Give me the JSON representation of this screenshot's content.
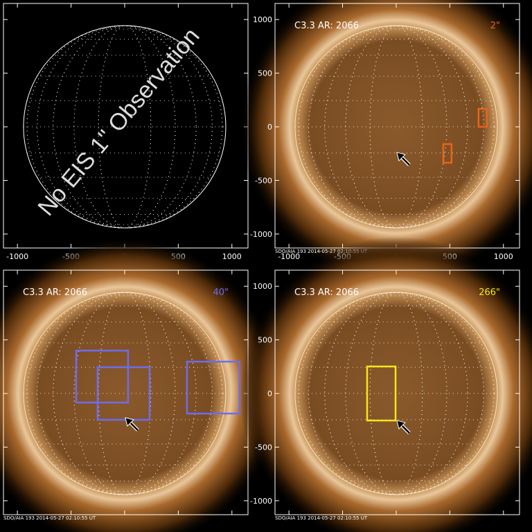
{
  "panels": [
    {
      "xlim": [
        -1130,
        1150
      ],
      "ylim": [
        -1130,
        1150
      ],
      "xticks": [
        -1000,
        -500,
        0,
        500,
        1000
      ],
      "yticks": [
        -1000,
        -500,
        0,
        500,
        1000
      ],
      "show_xtick_labels": true,
      "show_ytick_labels": false,
      "sun": false,
      "overlay": "No EIS 1\" Observation"
    },
    {
      "xlim": [
        -1130,
        1150
      ],
      "ylim": [
        -1130,
        1150
      ],
      "xticks": [
        -1000,
        -500,
        0,
        500,
        1000
      ],
      "yticks": [
        -1000,
        -500,
        0,
        500,
        1000
      ],
      "show_xtick_labels": true,
      "show_ytick_labels": true,
      "sun": true,
      "label": "C3.3 AR: 2066",
      "scale_label": "2\"",
      "color": "#e8641c",
      "footer": "SDO/AIA 193   2014-05-27 02:10:55 UT",
      "boxes": [
        {
          "x": [
            439,
            516
          ],
          "y": [
            -335,
            -161
          ]
        },
        {
          "x": [
            768,
            845
          ],
          "y": [
            0,
            168
          ]
        }
      ],
      "arrow": [
        6,
        -239
      ]
    },
    {
      "xlim": [
        -1130,
        1150
      ],
      "ylim": [
        -1130,
        1150
      ],
      "xticks": [
        -1000,
        -500,
        0,
        500,
        1000
      ],
      "yticks": [
        -1000,
        -500,
        0,
        500,
        1000
      ],
      "show_xtick_labels": false,
      "show_ytick_labels": false,
      "sun": true,
      "label": "C3.3 AR: 2066",
      "scale_label": "40\"",
      "color": "#6f6cf0",
      "footer": "SDO/AIA 193   2014-05-27 02:10:55 UT",
      "boxes": [
        {
          "x": [
            -452,
            32
          ],
          "y": [
            -84,
            400
          ]
        },
        {
          "x": [
            -252,
            232
          ],
          "y": [
            -245,
            245
          ]
        },
        {
          "x": [
            581,
            1071
          ],
          "y": [
            -187,
            297
          ]
        }
      ],
      "arrow": [
        6,
        -226
      ]
    },
    {
      "xlim": [
        -1130,
        1150
      ],
      "ylim": [
        -1130,
        1150
      ],
      "xticks": [
        -1000,
        -500,
        0,
        500,
        1000
      ],
      "yticks": [
        -1000,
        -500,
        0,
        500,
        1000
      ],
      "show_xtick_labels": false,
      "show_ytick_labels": true,
      "sun": true,
      "label": "C3.3 AR: 2066",
      "scale_label": "266\"",
      "color": "#f5e61a",
      "footer": "SDO/AIA 193   2014-05-27 02:10:55 UT",
      "boxes": [
        {
          "x": [
            -271,
            -6
          ],
          "y": [
            -252,
            252
          ]
        }
      ],
      "arrow": [
        6,
        -252
      ]
    }
  ]
}
